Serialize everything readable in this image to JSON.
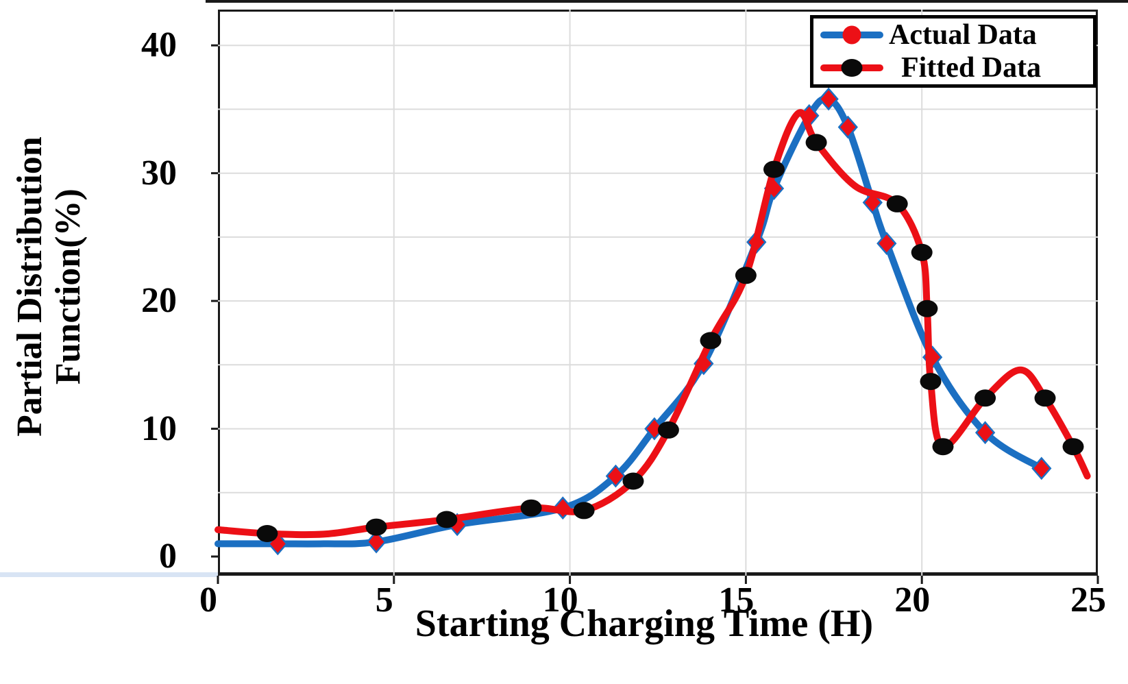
{
  "figure": {
    "kind": "line-chart",
    "background": "#ffffff"
  },
  "axes": {
    "x": {
      "title": "Starting Charging Time (H)",
      "ticks": [
        "0",
        "5",
        "10",
        "15",
        "20",
        "25"
      ],
      "tick_values": [
        0,
        5,
        10,
        15,
        20,
        25
      ]
    },
    "y": {
      "title_lines": [
        "Partial Distribution",
        "Function(%)"
      ],
      "ticks": [
        "0",
        "10",
        "20",
        "30",
        "40"
      ],
      "tick_values": [
        0,
        10,
        20,
        30,
        40
      ]
    }
  },
  "legend": {
    "position": "top-right",
    "items": [
      {
        "label": "Actual Data",
        "line_color": "#1b6fc2",
        "marker": "circle",
        "marker_color": "#ec1016"
      },
      {
        "label": "Fitted Data",
        "line_color": "#ec1016",
        "marker": "circle",
        "marker_color": "#0a0a0a"
      }
    ]
  },
  "colors": {
    "actual_line": "#1b6fc2",
    "fitted_line": "#ec1016",
    "marker_diamond_fill": "#ec1016",
    "marker_diamond_edge": "#1b6fc2",
    "marker_circle_fill": "#0a0a0a",
    "gridline": "#dcdcdc",
    "spine": "#1a1a1a"
  },
  "chart_data": {
    "type": "line",
    "title": "",
    "xlabel": "Starting Charging Time (H)",
    "ylabel": "Partial Distribution Function(%)",
    "xlim": [
      0,
      25
    ],
    "ylim": [
      -1.5,
      42.8
    ],
    "x_ticks": [
      0,
      5,
      10,
      15,
      20,
      25
    ],
    "y_ticks": [
      0,
      10,
      20,
      30,
      40
    ],
    "x_gridlines": [
      5,
      10,
      15,
      20
    ],
    "y_gridlines": [
      5,
      10,
      15,
      20,
      25,
      30,
      35,
      40
    ],
    "grid": true,
    "legend_position": "top-right",
    "series": [
      {
        "name": "Actual Data",
        "line_color": "#1b6fc2",
        "line_width": 10,
        "marker": "diamond",
        "marker_fill": "#ec1016",
        "marker_edge": "#1b6fc2",
        "points": [
          [
            0,
            1.0
          ],
          [
            1.7,
            1.0
          ],
          [
            3.0,
            1.0
          ],
          [
            4.5,
            1.15
          ],
          [
            6.8,
            2.5
          ],
          [
            9.8,
            3.8
          ],
          [
            11.3,
            6.3
          ],
          [
            12.4,
            10.0
          ],
          [
            13.8,
            15.1
          ],
          [
            15.3,
            24.6
          ],
          [
            15.8,
            28.8
          ],
          [
            16.8,
            34.5
          ],
          [
            17.35,
            35.8
          ],
          [
            17.9,
            33.6
          ],
          [
            18.6,
            27.7
          ],
          [
            19.0,
            24.5
          ],
          [
            20.3,
            15.6
          ],
          [
            21.8,
            9.7
          ],
          [
            23.4,
            6.9
          ]
        ],
        "marker_points": [
          [
            1.7,
            1.0
          ],
          [
            4.5,
            1.15
          ],
          [
            6.8,
            2.5
          ],
          [
            9.8,
            3.8
          ],
          [
            11.3,
            6.3
          ],
          [
            12.4,
            10.0
          ],
          [
            13.8,
            15.1
          ],
          [
            15.3,
            24.6
          ],
          [
            15.8,
            28.8
          ],
          [
            16.8,
            34.5
          ],
          [
            17.35,
            35.8
          ],
          [
            17.9,
            33.6
          ],
          [
            18.6,
            27.7
          ],
          [
            19.0,
            24.5
          ],
          [
            20.3,
            15.6
          ],
          [
            21.8,
            9.7
          ],
          [
            23.4,
            6.9
          ]
        ]
      },
      {
        "name": "Fitted Data",
        "line_color": "#ec1016",
        "line_width": 10,
        "marker": "circle",
        "marker_fill": "#0a0a0a",
        "marker_edge": "none",
        "points": [
          [
            0,
            2.1
          ],
          [
            1.4,
            1.8
          ],
          [
            3.0,
            1.75
          ],
          [
            4.5,
            2.3
          ],
          [
            6.5,
            2.9
          ],
          [
            8.9,
            3.8
          ],
          [
            10.4,
            3.6
          ],
          [
            11.8,
            5.9
          ],
          [
            12.8,
            9.9
          ],
          [
            14.0,
            16.9
          ],
          [
            15.0,
            22.0
          ],
          [
            15.8,
            30.3
          ],
          [
            16.5,
            34.7
          ],
          [
            17.0,
            32.4
          ],
          [
            18.1,
            29.0
          ],
          [
            19.3,
            27.6
          ],
          [
            20.0,
            23.8
          ],
          [
            20.15,
            19.4
          ],
          [
            20.25,
            13.7
          ],
          [
            20.6,
            8.6
          ],
          [
            21.8,
            12.4
          ],
          [
            22.8,
            14.6
          ],
          [
            23.5,
            12.4
          ],
          [
            24.3,
            8.6
          ],
          [
            24.7,
            6.3
          ]
        ],
        "marker_points": [
          [
            1.4,
            1.8
          ],
          [
            4.5,
            2.3
          ],
          [
            6.5,
            2.9
          ],
          [
            8.9,
            3.8
          ],
          [
            10.4,
            3.6
          ],
          [
            11.8,
            5.9
          ],
          [
            12.8,
            9.9
          ],
          [
            14.0,
            16.9
          ],
          [
            15.0,
            22.0
          ],
          [
            15.8,
            30.3
          ],
          [
            17.0,
            32.4
          ],
          [
            19.3,
            27.6
          ],
          [
            20.0,
            23.8
          ],
          [
            20.15,
            19.4
          ],
          [
            20.25,
            13.7
          ],
          [
            20.6,
            8.6
          ],
          [
            21.8,
            12.4
          ],
          [
            23.5,
            12.4
          ],
          [
            24.3,
            8.6
          ]
        ]
      }
    ]
  }
}
